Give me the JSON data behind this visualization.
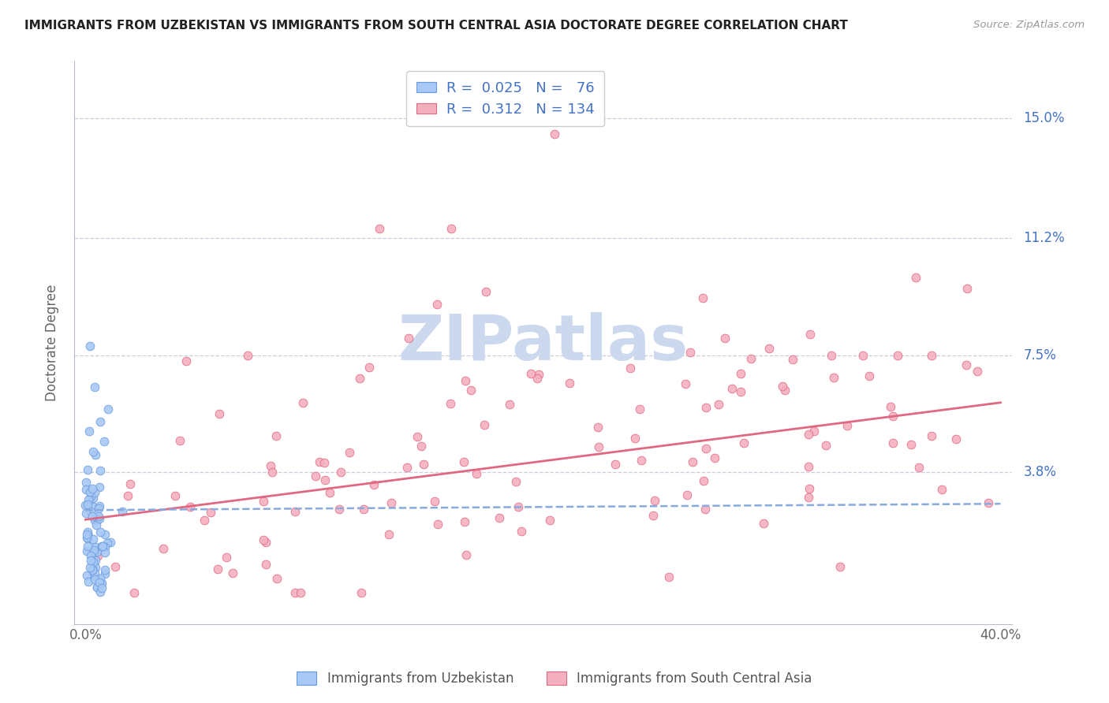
{
  "title": "IMMIGRANTS FROM UZBEKISTAN VS IMMIGRANTS FROM SOUTH CENTRAL ASIA DOCTORATE DEGREE CORRELATION CHART",
  "source": "Source: ZipAtlas.com",
  "ylabel": "Doctorate Degree",
  "ytick_labels": [
    "15.0%",
    "11.2%",
    "7.5%",
    "3.8%"
  ],
  "ytick_values": [
    0.15,
    0.112,
    0.075,
    0.038
  ],
  "xlim": [
    0.0,
    0.4
  ],
  "ylim": [
    -0.01,
    0.168
  ],
  "color_uzbekistan_fill": "#a8c8f5",
  "color_uzbekistan_edge": "#6699dd",
  "color_sca_fill": "#f5b0c0",
  "color_sca_edge": "#e06880",
  "color_uzbekistan_trend": "#88aadd",
  "color_sca_trend": "#e06880",
  "color_text_blue": "#4472c4",
  "color_grid": "#ccccdd",
  "background": "#ffffff",
  "watermark_color": "#ccd8ee",
  "legend_r1": "0.025",
  "legend_n1": "76",
  "legend_r2": "0.312",
  "legend_n2": "134",
  "label_uzbekistan": "Immigrants from Uzbekistan",
  "label_sca": "Immigrants from South Central Asia"
}
